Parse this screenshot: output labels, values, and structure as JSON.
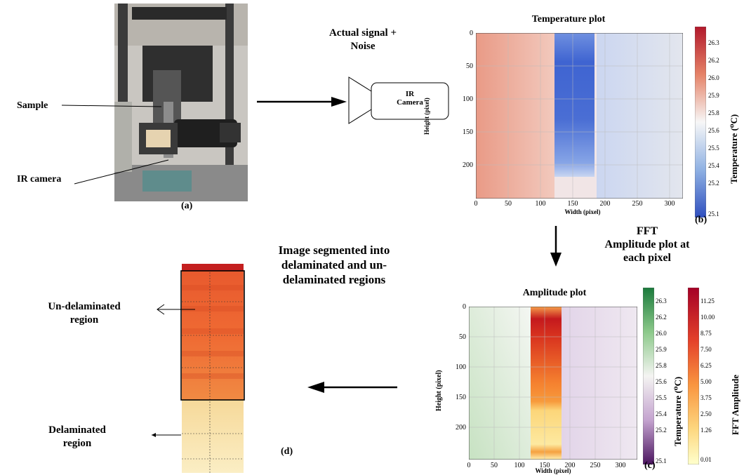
{
  "panel_a": {
    "sample_label": "Sample",
    "ir_camera_label": "IR camera",
    "panel_tag": "(a)"
  },
  "flow": {
    "signal_label_line1": "Actual signal +",
    "signal_label_line2": "Noise",
    "camera_box_line1": "IR",
    "camera_box_line2": "Camera",
    "fft_line1": "FFT",
    "fft_line2": "Amplitude plot at",
    "fft_line3": "each pixel",
    "segment_line1": "Image segmented into",
    "segment_line2": "delaminated and un-",
    "segment_line3": "delaminated regions"
  },
  "panel_b": {
    "title": "Temperature plot",
    "ylabel": "Height (pixel)",
    "xlabel": "Width (pixel)",
    "yticks": [
      "0",
      "50",
      "100",
      "150",
      "200"
    ],
    "xticks": [
      "0",
      "50",
      "100",
      "150",
      "200",
      "250",
      "300"
    ],
    "colorbar_label": "Temperature (⁰C)",
    "colorbar_ticks": [
      "26.3",
      "26.2",
      "26.0",
      "25.9",
      "25.8",
      "25.6",
      "25.5",
      "25.4",
      "25.2",
      "25.1"
    ],
    "panel_tag": "(b)",
    "colors": {
      "hot": "#d43f31",
      "mid": "#f7f4f2",
      "cold": "#3a5fcd"
    }
  },
  "panel_c": {
    "title": "Amplitude plot",
    "ylabel": "Height (pixel)",
    "xlabel": "Width (pixel)",
    "yticks": [
      "0",
      "50",
      "100",
      "150",
      "200"
    ],
    "xticks": [
      "0",
      "50",
      "100",
      "150",
      "200",
      "250",
      "300"
    ],
    "temp_colorbar_label": "Temperature (⁰C)",
    "temp_colorbar_ticks": [
      "26.3",
      "26.2",
      "26.0",
      "25.9",
      "25.8",
      "25.6",
      "25.5",
      "25.4",
      "25.2",
      "25.1"
    ],
    "fft_colorbar_label": "FFT Amplitude",
    "fft_colorbar_ticks": [
      "11.25",
      "10.00",
      "8.75",
      "7.50",
      "6.25",
      "5.00",
      "3.75",
      "2.50",
      "1.26",
      "0.01"
    ],
    "panel_tag": "(c)",
    "colors": {
      "green": "#1b7a3c",
      "purple": "#5a1a6b",
      "fft_hot": "#a50026",
      "fft_cold": "#ffffcc"
    }
  },
  "panel_d": {
    "undelam_line1": "Un-delaminated",
    "undelam_line2": "region",
    "delam_line1": "Delaminated",
    "delam_line2": "region",
    "panel_tag": "(d)"
  }
}
